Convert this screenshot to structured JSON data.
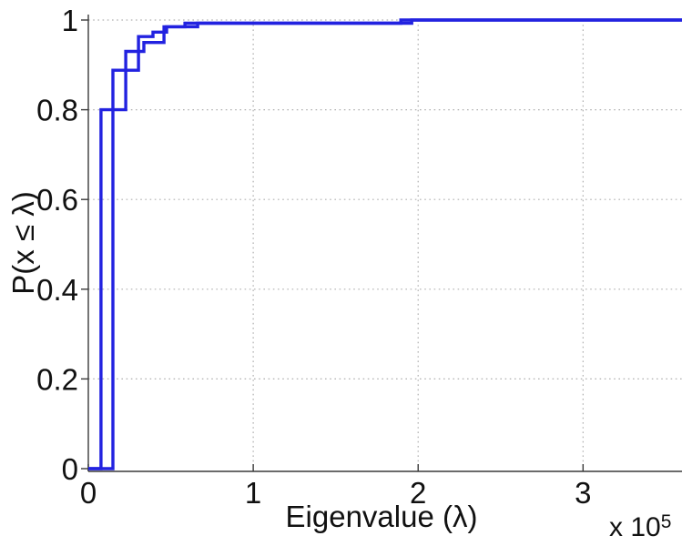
{
  "chart_data": {
    "type": "line",
    "subtype": "empirical-cdf-staircase",
    "title": "",
    "xlabel": "Eigenvalue (λ)",
    "ylabel": "P(x ≤ λ)",
    "x_scale_label": {
      "prefix": "x 10",
      "exponent": "5"
    },
    "xlim": [
      0,
      3.6
    ],
    "ylim": [
      0,
      1
    ],
    "x_unit_multiplier": 100000,
    "x_tick_values": [
      0,
      1,
      2,
      3
    ],
    "x_tick_labels": [
      "0",
      "1",
      "2",
      "3"
    ],
    "y_tick_values": [
      0,
      0.2,
      0.4,
      0.6,
      0.8,
      1
    ],
    "y_tick_labels": [
      "0",
      "0.2",
      "0.4",
      "0.6",
      "0.8",
      "1"
    ],
    "grid": "dotted",
    "legend": "none",
    "line_color": "#2222e0",
    "axis_color": "#3a3a3a",
    "grid_color": "#b0b0b0",
    "background_color": "#ffffff",
    "series": [
      {
        "name": "ecdf-curve-1",
        "color": "#2222e0",
        "points": [
          [
            0,
            0
          ],
          [
            0.077,
            0
          ],
          [
            0.077,
            0.8
          ],
          [
            0.227,
            0.8
          ],
          [
            0.227,
            0.93
          ],
          [
            0.337,
            0.93
          ],
          [
            0.337,
            0.95
          ],
          [
            0.459,
            0.95
          ],
          [
            0.459,
            0.985
          ],
          [
            0.586,
            0.985
          ],
          [
            0.586,
            0.993
          ],
          [
            1.895,
            0.993
          ],
          [
            1.895,
            1.0
          ],
          [
            3.62,
            1.0
          ]
        ]
      },
      {
        "name": "ecdf-curve-2",
        "color": "#2222e0",
        "points": [
          [
            0,
            0
          ],
          [
            0.149,
            0
          ],
          [
            0.149,
            0.888
          ],
          [
            0.304,
            0.888
          ],
          [
            0.304,
            0.963
          ],
          [
            0.392,
            0.963
          ],
          [
            0.392,
            0.973
          ],
          [
            0.475,
            0.973
          ],
          [
            0.475,
            0.985
          ],
          [
            0.663,
            0.985
          ],
          [
            0.663,
            0.993
          ],
          [
            1.961,
            0.993
          ],
          [
            1.961,
            1.0
          ],
          [
            3.62,
            1.0
          ]
        ]
      }
    ]
  }
}
